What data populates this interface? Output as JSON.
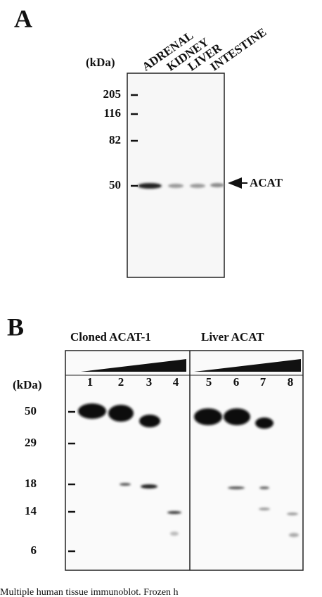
{
  "panel_a": {
    "label": "A",
    "lanes": [
      "ADRENAL",
      "KIDNEY",
      "LIVER",
      "INTESTINE"
    ],
    "unit": "(kDa)",
    "markers": [
      205,
      116,
      82,
      50
    ],
    "band_label": "ACAT"
  },
  "panel_b": {
    "label": "B",
    "groups": [
      "Cloned ACAT-1",
      "Liver ACAT"
    ],
    "lanes": [
      "1",
      "2",
      "3",
      "4",
      "5",
      "6",
      "7",
      "8"
    ],
    "unit": "(kDa)",
    "markers": [
      50,
      29,
      18,
      14,
      6
    ]
  },
  "caption": "Multiple human tissue immunoblot. Frozen h"
}
